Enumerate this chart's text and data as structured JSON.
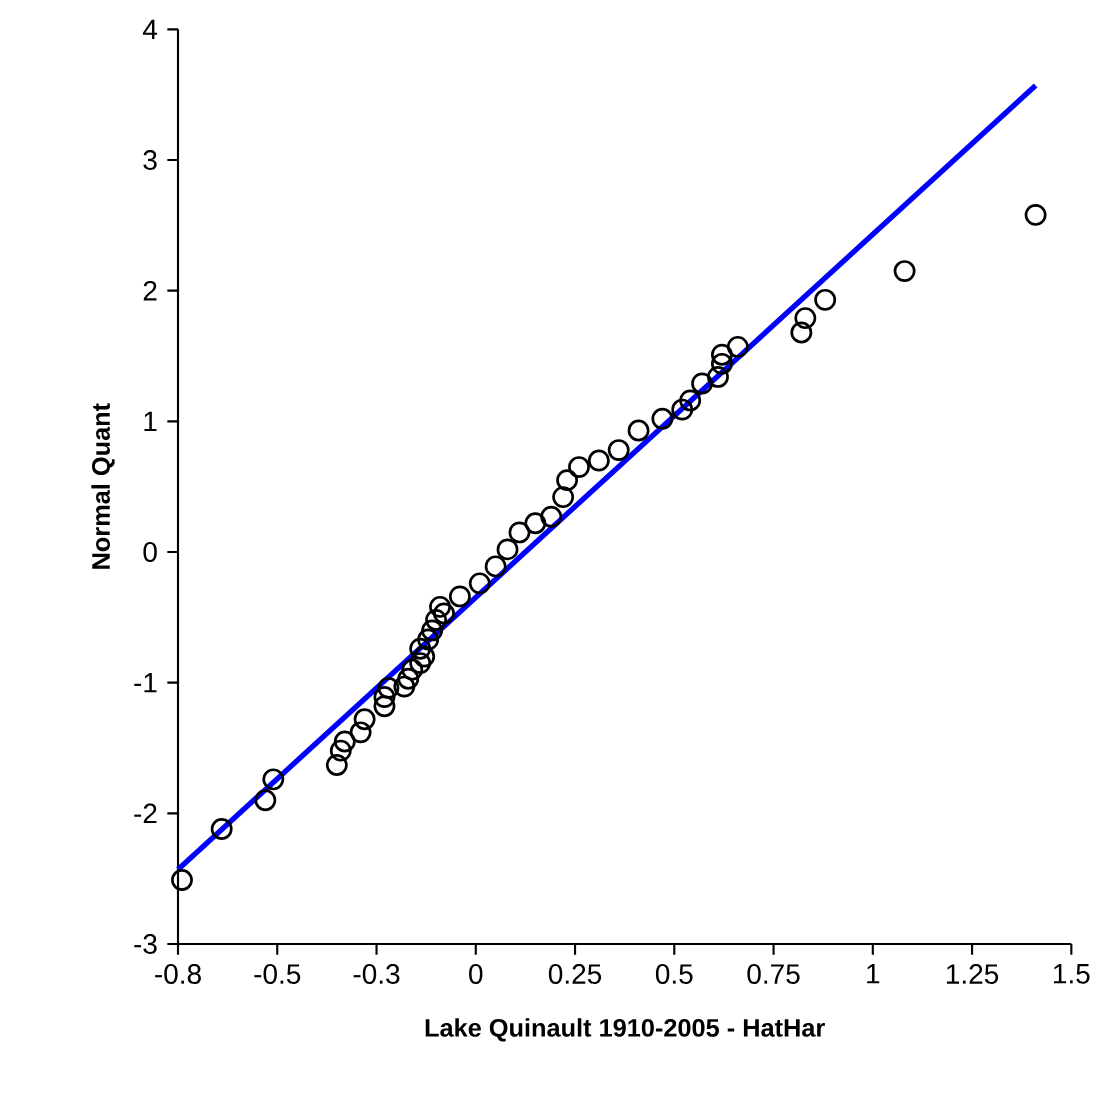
{
  "chart_data": {
    "type": "scatter",
    "xlabel": "Lake Quinault 1910-2005 - HatHar",
    "ylabel": "Normal Quant",
    "xlim": [
      -0.75,
      1.5
    ],
    "ylim": [
      -3,
      4
    ],
    "xticks": [
      {
        "value": -0.75,
        "label": "-0.8"
      },
      -0.5,
      {
        "value": -0.25,
        "label": "-0.3"
      },
      0,
      0.25,
      0.5,
      0.75,
      1,
      1.25,
      1.5
    ],
    "yticks": [
      -3,
      -2,
      -1,
      0,
      1,
      2,
      3,
      4
    ],
    "grid": false,
    "series": [
      {
        "type": "line",
        "color": "#0000ff",
        "marker": "none",
        "line_style": "solid",
        "x": [
          -0.75,
          1.41
        ],
        "values": [
          -2.43,
          3.57
        ]
      },
      {
        "color": "#000000",
        "marker": "circle",
        "x": [
          -0.74,
          -0.64,
          -0.53,
          -0.51,
          -0.35,
          -0.34,
          -0.33,
          -0.29,
          -0.28,
          -0.23,
          -0.23,
          -0.22,
          -0.18,
          -0.17,
          -0.16,
          -0.14,
          -0.13,
          -0.14,
          -0.12,
          -0.11,
          -0.1,
          -0.08,
          -0.09,
          -0.04,
          0.01,
          0.05,
          0.08,
          0.11,
          0.15,
          0.19,
          0.22,
          0.23,
          0.26,
          0.31,
          0.36,
          0.41,
          0.47,
          0.52,
          0.54,
          0.57,
          0.61,
          0.62,
          0.62,
          0.66,
          0.82,
          0.83,
          0.88,
          1.08,
          1.41
        ],
        "values": [
          -2.51,
          -2.12,
          -1.9,
          -1.74,
          -1.63,
          -1.52,
          -1.45,
          -1.38,
          -1.28,
          -1.18,
          -1.11,
          -1.04,
          -1.03,
          -0.97,
          -0.9,
          -0.85,
          -0.8,
          -0.74,
          -0.67,
          -0.6,
          -0.52,
          -0.47,
          -0.42,
          -0.34,
          -0.24,
          -0.11,
          0.02,
          0.15,
          0.22,
          0.27,
          0.42,
          0.55,
          0.65,
          0.7,
          0.78,
          0.93,
          1.02,
          1.09,
          1.16,
          1.29,
          1.34,
          1.44,
          1.51,
          1.57,
          1.68,
          1.79,
          1.93,
          2.15,
          2.58
        ]
      }
    ]
  }
}
